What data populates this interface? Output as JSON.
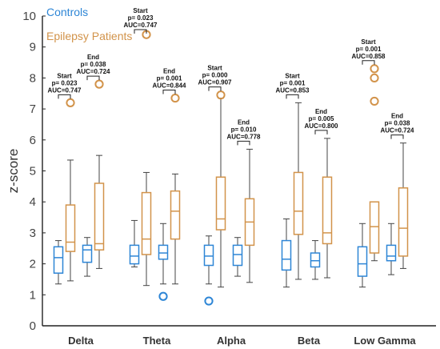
{
  "chart_data": {
    "type": "box",
    "ylabel": "z-score",
    "ylim": [
      0,
      10
    ],
    "yticks": [
      "0",
      "1",
      "2",
      "3",
      "4",
      "5",
      "6",
      "7",
      "8",
      "9",
      "10"
    ],
    "categories": [
      "Delta",
      "Theta",
      "Alpha",
      "Beta",
      "Low Gamma"
    ],
    "legend_position": "top-left",
    "colors": {
      "Controls": "#2e86d6",
      "Epilepsy Patients": "#d2934a"
    },
    "series": [
      {
        "name": "Controls",
        "boxes": [
          {
            "category": "Delta",
            "type": "start",
            "whisker_low": 1.35,
            "q1": 1.7,
            "median": 2.2,
            "q3": 2.55,
            "whisker_high": 2.75,
            "outliers": []
          },
          {
            "category": "Delta",
            "type": "end",
            "whisker_low": 1.6,
            "q1": 2.05,
            "median": 2.45,
            "q3": 2.6,
            "whisker_high": 2.85,
            "outliers": []
          },
          {
            "category": "Theta",
            "type": "start",
            "whisker_low": 1.9,
            "q1": 2.0,
            "median": 2.25,
            "q3": 2.6,
            "whisker_high": 3.4,
            "outliers": []
          },
          {
            "category": "Theta",
            "type": "end",
            "whisker_low": 1.35,
            "q1": 2.15,
            "median": 2.35,
            "q3": 2.6,
            "whisker_high": 3.3,
            "outliers": [
              0.95
            ]
          },
          {
            "category": "Alpha",
            "type": "start",
            "whisker_low": 1.35,
            "q1": 1.95,
            "median": 2.25,
            "q3": 2.6,
            "whisker_high": 2.9,
            "outliers": [
              0.8
            ]
          },
          {
            "category": "Alpha",
            "type": "end",
            "whisker_low": 1.6,
            "q1": 1.95,
            "median": 2.3,
            "q3": 2.6,
            "whisker_high": 2.85,
            "outliers": []
          },
          {
            "category": "Beta",
            "type": "start",
            "whisker_low": 1.25,
            "q1": 1.8,
            "median": 2.15,
            "q3": 2.75,
            "whisker_high": 3.45,
            "outliers": []
          },
          {
            "category": "Beta",
            "type": "end",
            "whisker_low": 1.5,
            "q1": 1.9,
            "median": 2.1,
            "q3": 2.35,
            "whisker_high": 2.75,
            "outliers": []
          },
          {
            "category": "Low Gamma",
            "type": "start",
            "whisker_low": 1.25,
            "q1": 1.6,
            "median": 2.0,
            "q3": 2.55,
            "whisker_high": 3.3,
            "outliers": []
          },
          {
            "category": "Low Gamma",
            "type": "end",
            "whisker_low": 1.65,
            "q1": 2.1,
            "median": 2.25,
            "q3": 2.6,
            "whisker_high": 3.3,
            "outliers": []
          }
        ]
      },
      {
        "name": "Epilepsy Patients",
        "boxes": [
          {
            "category": "Delta",
            "type": "start",
            "whisker_low": 1.45,
            "q1": 2.4,
            "median": 2.7,
            "q3": 3.9,
            "whisker_high": 5.35,
            "outliers": [
              7.2
            ]
          },
          {
            "category": "Delta",
            "type": "end",
            "whisker_low": 1.85,
            "q1": 2.45,
            "median": 2.65,
            "q3": 4.6,
            "whisker_high": 5.5,
            "outliers": [
              7.8
            ]
          },
          {
            "category": "Theta",
            "type": "start",
            "whisker_low": 1.3,
            "q1": 2.3,
            "median": 2.8,
            "q3": 4.3,
            "whisker_high": 4.95,
            "outliers": [
              9.4
            ]
          },
          {
            "category": "Theta",
            "type": "end",
            "whisker_low": 1.35,
            "q1": 2.8,
            "median": 3.7,
            "q3": 4.35,
            "whisker_high": 4.9,
            "outliers": [
              7.35
            ]
          },
          {
            "category": "Alpha",
            "type": "start",
            "whisker_low": 1.25,
            "q1": 3.1,
            "median": 3.45,
            "q3": 4.8,
            "whisker_high": 7.35,
            "outliers": [
              7.45
            ]
          },
          {
            "category": "Alpha",
            "type": "end",
            "whisker_low": 1.4,
            "q1": 2.6,
            "median": 3.35,
            "q3": 4.1,
            "whisker_high": 5.7,
            "outliers": []
          },
          {
            "category": "Beta",
            "type": "start",
            "whisker_low": 1.5,
            "q1": 2.95,
            "median": 3.7,
            "q3": 4.95,
            "whisker_high": 7.2,
            "outliers": []
          },
          {
            "category": "Beta",
            "type": "end",
            "whisker_low": 1.55,
            "q1": 2.65,
            "median": 3.0,
            "q3": 4.8,
            "whisker_high": 6.05,
            "outliers": []
          },
          {
            "category": "Low Gamma",
            "type": "start",
            "whisker_low": 2.1,
            "q1": 2.35,
            "median": 3.2,
            "q3": 4.0,
            "whisker_high": 4.0,
            "outliers": [
              8.3,
              8.0,
              7.25
            ]
          },
          {
            "category": "Low Gamma",
            "type": "end",
            "whisker_low": 1.85,
            "q1": 2.25,
            "median": 3.15,
            "q3": 4.45,
            "whisker_high": 5.9,
            "outliers": []
          }
        ]
      }
    ],
    "annotations": [
      {
        "category": "Delta",
        "type": "start",
        "lines": [
          "Start",
          "p= 0.023",
          "AUC=0.747"
        ]
      },
      {
        "category": "Delta",
        "type": "end",
        "lines": [
          "End",
          "p= 0.038",
          "AUC=0.724"
        ]
      },
      {
        "category": "Theta",
        "type": "start",
        "lines": [
          "Start",
          "p= 0.023",
          "AUC=0.747"
        ]
      },
      {
        "category": "Theta",
        "type": "end",
        "lines": [
          "End",
          "p= 0.001",
          "AUC=0.844"
        ]
      },
      {
        "category": "Alpha",
        "type": "start",
        "lines": [
          "Start",
          "p= 0.000",
          "AUC=0.907"
        ]
      },
      {
        "category": "Alpha",
        "type": "end",
        "lines": [
          "End",
          "p= 0.010",
          "AUC=0.778"
        ]
      },
      {
        "category": "Beta",
        "type": "start",
        "lines": [
          "Start",
          "p= 0.001",
          "AUC=0.853"
        ]
      },
      {
        "category": "Beta",
        "type": "end",
        "lines": [
          "End",
          "p= 0.005",
          "AUC=0.800"
        ]
      },
      {
        "category": "Low Gamma",
        "type": "start",
        "lines": [
          "Start",
          "p= 0.001",
          "AUC=0.858"
        ]
      },
      {
        "category": "Low Gamma",
        "type": "end",
        "lines": [
          "End",
          "p= 0.038",
          "AUC=0.724"
        ]
      }
    ]
  }
}
